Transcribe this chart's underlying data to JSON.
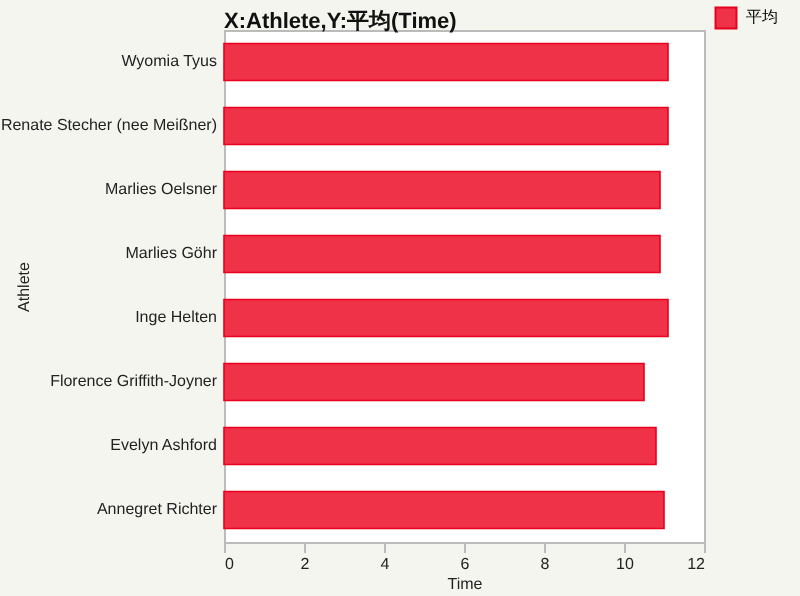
{
  "chart_data": {
    "type": "bar",
    "orientation": "horizontal",
    "title": "X:Athlete,Y:平均(Time)",
    "xlabel": "Time",
    "ylabel": "Athlete",
    "categories": [
      "Wyomia Tyus",
      "Renate Stecher (nee Meißner)",
      "Marlies Oelsner",
      "Marlies Göhr",
      "Inge Helten",
      "Florence Griffith-Joyner",
      "Evelyn Ashford",
      "Annegret Richter"
    ],
    "series": [
      {
        "name": "平均",
        "color": "#f03248",
        "values": [
          11.1,
          11.1,
          10.9,
          10.9,
          11.1,
          10.5,
          10.8,
          11.0
        ]
      }
    ],
    "xlim": [
      0,
      12
    ],
    "xticks": [
      0,
      2,
      4,
      6,
      8,
      10,
      12
    ],
    "legend": "top right",
    "grid": false
  }
}
